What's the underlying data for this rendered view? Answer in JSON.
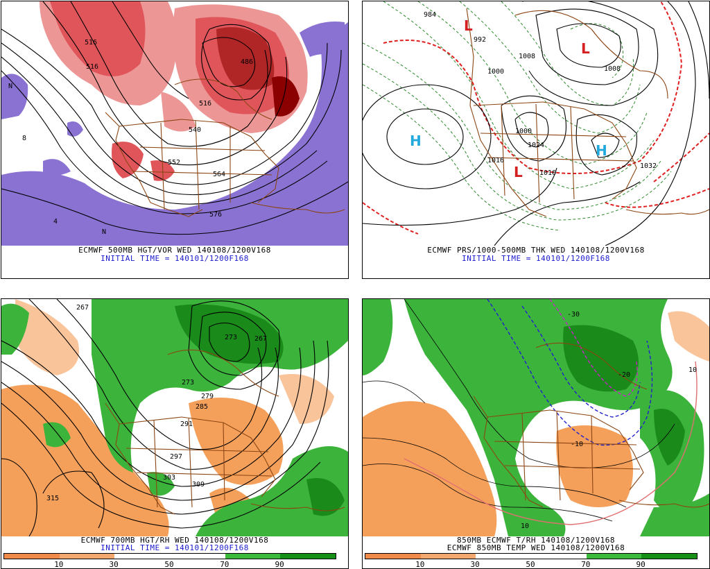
{
  "panels": [
    {
      "id": "vort500",
      "line1": "ECMWF 500MB HGT/VOR WED 140108/1200V168",
      "line2": "INITIAL TIME = 140101/1200F168",
      "contour_labels": [
        "516",
        "516",
        "486",
        "516",
        "540",
        "552",
        "564",
        "576",
        "4",
        "8",
        "N",
        "N"
      ]
    },
    {
      "id": "mslp",
      "line1": "ECMWF PRS/1000-500MB THK WED 140108/1200V168",
      "line2": "INITIAL TIME = 140101/1200F168",
      "contour_labels": [
        "984",
        "992",
        "1008",
        "1000",
        "1016",
        "1024",
        "1032",
        "1008",
        "1000",
        "1016"
      ],
      "centers": [
        {
          "type": "L",
          "color": "#d42020"
        },
        {
          "type": "L",
          "color": "#d42020"
        },
        {
          "type": "L",
          "color": "#d42020"
        },
        {
          "type": "H",
          "color": "#22aadd"
        },
        {
          "type": "H",
          "color": "#22aadd"
        }
      ]
    },
    {
      "id": "rh700",
      "line1": "ECMWF 700MB HGT/RH WED 140108/1200V168",
      "line2": "INITIAL TIME = 140101/1200F168",
      "contour_labels": [
        "267",
        "273",
        "279",
        "285",
        "291",
        "297",
        "303",
        "309",
        "315",
        "273",
        "267"
      ]
    },
    {
      "id": "t850",
      "line1": "850MB ECMWF T/RH 140108/1200V168",
      "line2": "ECMWF 850MB TEMP WED 140108/1200V168",
      "contour_labels": [
        "-10",
        "-30",
        "10",
        "10",
        "-20"
      ]
    }
  ],
  "colorbar": {
    "ticks": [
      "10",
      "30",
      "50",
      "70",
      "90"
    ],
    "colors": [
      "#f08a4b",
      "#f3a870",
      "#ffffff",
      "#ffffff",
      "#3cba3c",
      "#168f16"
    ]
  },
  "colors": {
    "vorticity": "#e0555a",
    "vorticity_dark": "#8b0000",
    "neg_vorticity": "#8a72d2",
    "dry": "#f5a05a",
    "moist": "#3cb43c",
    "moist_dark": "#1a8a1a",
    "coast": "#8b4513",
    "thickness": "#2e8b2e",
    "freezing": "#e02020"
  }
}
